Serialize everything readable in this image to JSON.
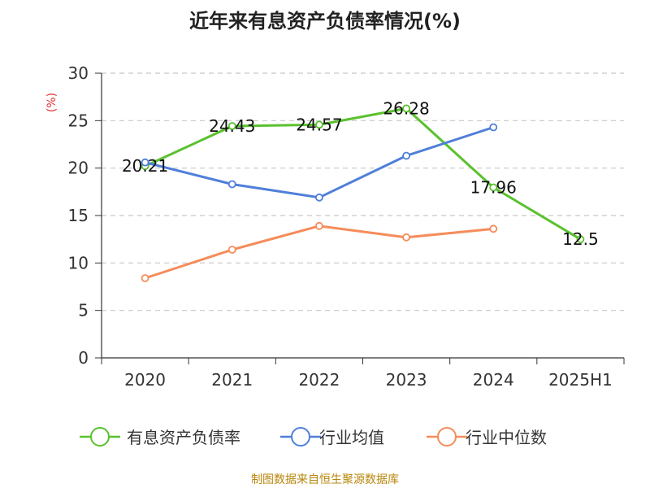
{
  "chart_data": {
    "type": "line",
    "title": "近年来有息资产负债率情况(%)",
    "unit_label": "(%)",
    "categories": [
      "2020",
      "2021",
      "2022",
      "2023",
      "2024",
      "2025H1"
    ],
    "ylim": [
      0,
      30
    ],
    "yticks": [
      0,
      5,
      10,
      15,
      20,
      25,
      30
    ],
    "grid": true,
    "legend_position": "bottom",
    "series": [
      {
        "name": "有息资产负债率",
        "color": "#5ac12e",
        "values": [
          20.21,
          24.43,
          24.57,
          26.28,
          17.96,
          12.5
        ],
        "labels": [
          "20.21",
          "24.43",
          "24.57",
          "26.28",
          "17.96",
          "12.5"
        ]
      },
      {
        "name": "行业均值",
        "color": "#4f7fd9",
        "values": [
          20.6,
          18.3,
          16.9,
          21.3,
          24.3,
          null
        ]
      },
      {
        "name": "行业中位数",
        "color": "#f58c5a",
        "values": [
          8.4,
          11.4,
          13.9,
          12.7,
          13.6,
          null
        ]
      }
    ],
    "source": "制图数据来自恒生聚源数据库"
  }
}
